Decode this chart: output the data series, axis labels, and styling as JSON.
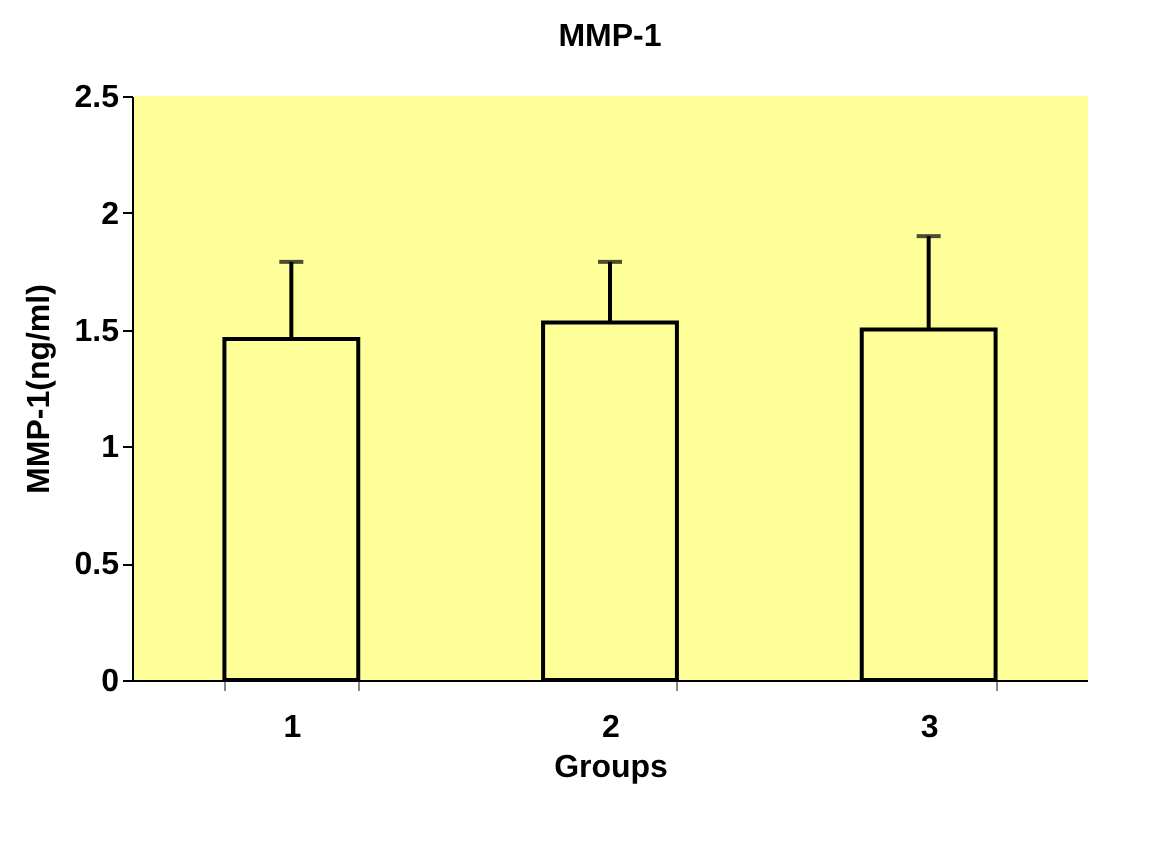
{
  "chart_data": {
    "type": "bar",
    "title": "MMP-1",
    "xlabel": "Groups",
    "ylabel": "MMP-1(ng/ml)",
    "categories": [
      "1",
      "2",
      "3"
    ],
    "values": [
      1.46,
      1.53,
      1.5
    ],
    "errors": [
      [
        1.46,
        1.79
      ],
      [
        1.53,
        1.79
      ],
      [
        1.5,
        1.9
      ]
    ],
    "color": "#ffff99",
    "ylim": [
      0,
      2.5
    ],
    "yticks": [
      0,
      0.5,
      1,
      1.5,
      2,
      2.5
    ],
    "grid": false
  }
}
